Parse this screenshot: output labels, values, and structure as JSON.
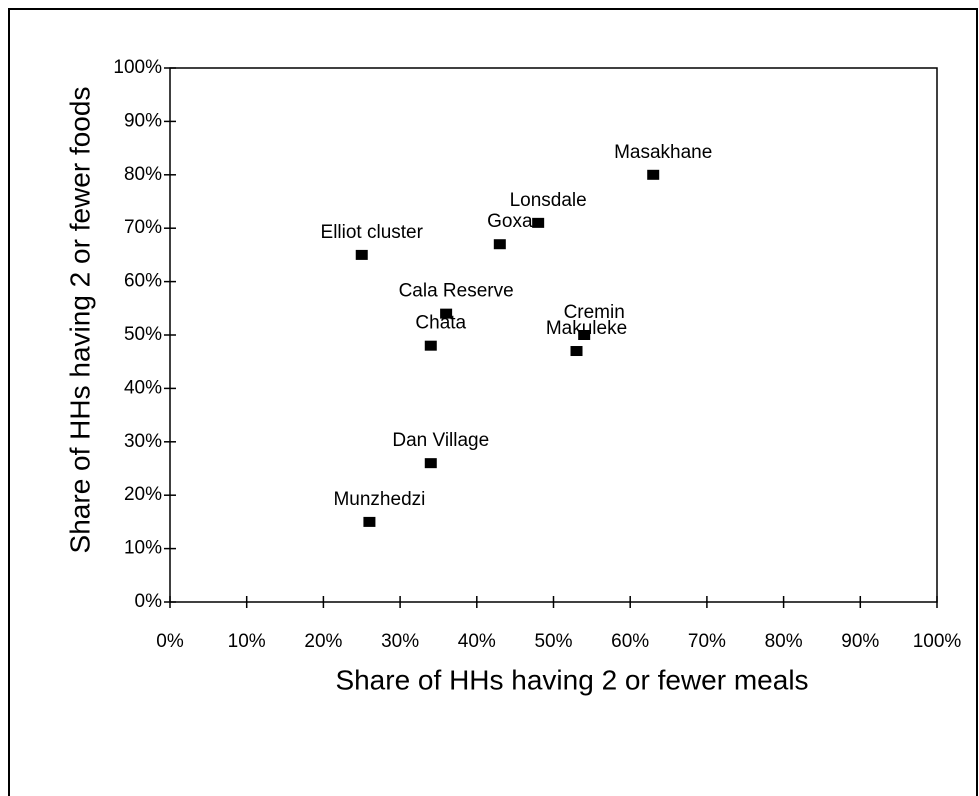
{
  "chart_data": {
    "type": "scatter",
    "xlabel": "Share of HHs having 2 or fewer meals",
    "ylabel": "Share of HHs having 2 or fewer foods",
    "series": [
      {
        "name": null,
        "color": "#000000",
        "labels": [
          "Masakhane",
          "Lonsdale",
          "Goxa",
          "Elliot cluster",
          "Cala Reserve",
          "Chata",
          "Cremin",
          "Makuleke",
          "Dan Village",
          "Munzhedzi"
        ],
        "x": [
          63,
          48,
          43,
          25,
          36,
          34,
          54,
          53,
          34,
          26
        ],
        "values": [
          80,
          71,
          67,
          65,
          54,
          48,
          50,
          47,
          26,
          15
        ]
      }
    ],
    "xlim": [
      0,
      100
    ],
    "ylim": [
      0,
      100
    ],
    "xticks": [
      {
        "value": 0,
        "label": "0%"
      },
      {
        "value": 10,
        "label": "10%"
      },
      {
        "value": 20,
        "label": "20%"
      },
      {
        "value": 30,
        "label": "30%"
      },
      {
        "value": 40,
        "label": "40%"
      },
      {
        "value": 50,
        "label": "50%"
      },
      {
        "value": 60,
        "label": "60%"
      },
      {
        "value": 70,
        "label": "70%"
      },
      {
        "value": 80,
        "label": "80%"
      },
      {
        "value": 90,
        "label": "90%"
      },
      {
        "value": 100,
        "label": "100%"
      }
    ],
    "yticks": [
      {
        "value": 0,
        "label": "0%"
      },
      {
        "value": 10,
        "label": "10%"
      },
      {
        "value": 20,
        "label": "20%"
      },
      {
        "value": 30,
        "label": "30%"
      },
      {
        "value": 40,
        "label": "40%"
      },
      {
        "value": 50,
        "label": "50%"
      },
      {
        "value": 60,
        "label": "60%"
      },
      {
        "value": 70,
        "label": "70%"
      },
      {
        "value": 80,
        "label": "80%"
      },
      {
        "value": 90,
        "label": "90%"
      },
      {
        "value": 100,
        "label": "100%"
      }
    ],
    "grid": false
  }
}
